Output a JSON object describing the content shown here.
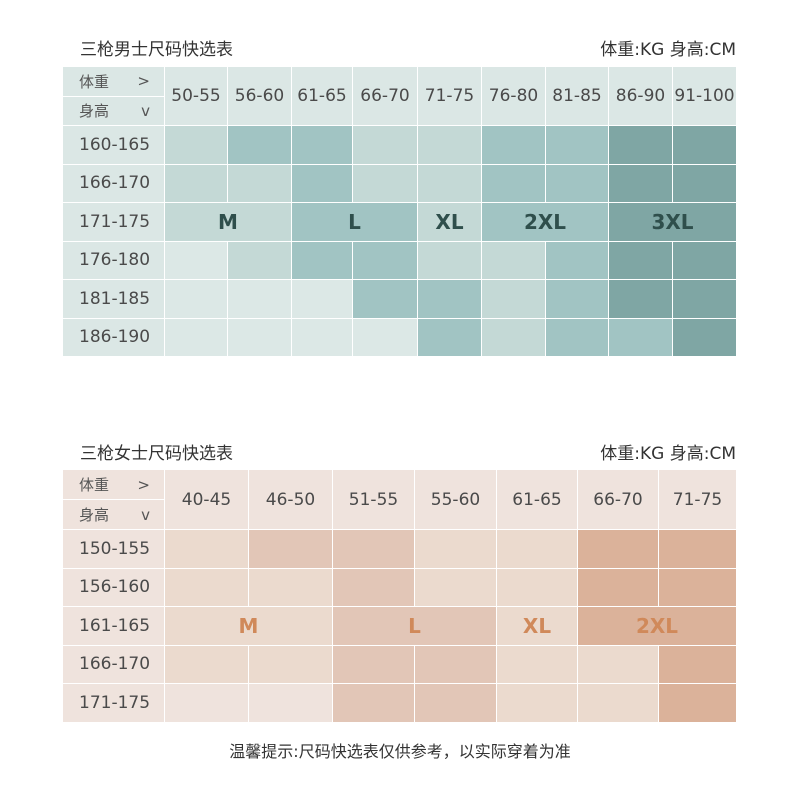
{
  "men": {
    "title": "三枪男士尺码快选表",
    "unit": "体重:KG 身高:CM",
    "weight_label": "体重",
    "weight_arrow": ">",
    "height_label": "身高",
    "height_arrow": "v",
    "columns": [
      "50-55",
      "56-60",
      "61-65",
      "66-70",
      "71-75",
      "76-80",
      "81-85",
      "86-90",
      "91-100"
    ],
    "rows": [
      "160-165",
      "166-170",
      "171-175",
      "176-180",
      "181-185",
      "186-190"
    ],
    "shades": [
      [
        1,
        2,
        2,
        1,
        1,
        2,
        2,
        3,
        3
      ],
      [
        1,
        1,
        2,
        1,
        1,
        2,
        2,
        3,
        3
      ],
      [
        1,
        1,
        2,
        2,
        1,
        2,
        2,
        3,
        3
      ],
      [
        0,
        1,
        2,
        2,
        1,
        1,
        2,
        3,
        3
      ],
      [
        0,
        0,
        0,
        2,
        2,
        1,
        2,
        3,
        3
      ],
      [
        0,
        0,
        0,
        0,
        2,
        1,
        2,
        2,
        3
      ]
    ],
    "size_row": 2,
    "sizes": [
      {
        "label": "M",
        "start": 0,
        "span": 2,
        "shade": 1
      },
      {
        "label": "L",
        "start": 2,
        "span": 2,
        "shade": 2
      },
      {
        "label": "XL",
        "start": 4,
        "span": 1,
        "shade": 1
      },
      {
        "label": "2XL",
        "start": 5,
        "span": 2,
        "shade": 2
      },
      {
        "label": "3XL",
        "start": 7,
        "span": 2,
        "shade": 3
      }
    ],
    "colors": {
      "header": "#dbe7e5",
      "palette": [
        "#dce8e6",
        "#c4d9d6",
        "#a1c4c3",
        "#7fa6a4"
      ],
      "size_text": "#2f4f4c"
    }
  },
  "women": {
    "title": "三枪女士尺码快选表",
    "unit": "体重:KG 身高:CM",
    "weight_label": "体重",
    "weight_arrow": ">",
    "height_label": "身高",
    "height_arrow": "v",
    "columns": [
      "40-45",
      "46-50",
      "51-55",
      "55-60",
      "61-65",
      "66-70",
      "71-75"
    ],
    "rows": [
      "150-155",
      "156-160",
      "161-165",
      "166-170",
      "171-175"
    ],
    "shades": [
      [
        1,
        2,
        2,
        1,
        1,
        3,
        3
      ],
      [
        1,
        1,
        2,
        1,
        1,
        3,
        3
      ],
      [
        1,
        1,
        2,
        2,
        1,
        3,
        3
      ],
      [
        1,
        1,
        2,
        2,
        1,
        1,
        3
      ],
      [
        0,
        0,
        2,
        2,
        1,
        1,
        3
      ]
    ],
    "size_row": 2,
    "sizes": [
      {
        "label": "M",
        "start": 0,
        "span": 2,
        "shade": 1
      },
      {
        "label": "L",
        "start": 2,
        "span": 2,
        "shade": 2
      },
      {
        "label": "XL",
        "start": 4,
        "span": 1,
        "shade": 1
      },
      {
        "label": "2XL",
        "start": 5,
        "span": 2,
        "shade": 3
      }
    ],
    "colors": {
      "header": "#efe3dd",
      "palette": [
        "#efe3dd",
        "#ebdace",
        "#e2c6b7",
        "#dbb29a"
      ],
      "size_text": "#d0895a"
    }
  },
  "note": "温馨提示:尺码快选表仅供参考，以实际穿着为准"
}
